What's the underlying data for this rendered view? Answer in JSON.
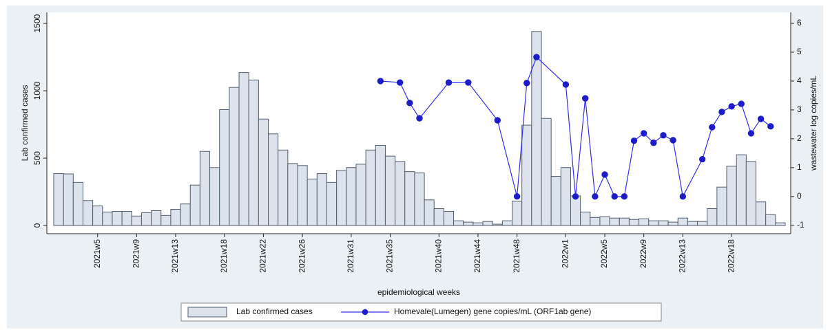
{
  "chart_data": {
    "type": "bar",
    "connect_missing": true,
    "x_label": "epidemiological weeks",
    "y_label": "Lab confirmed cases",
    "y2_label": "wastewater log copies/mL",
    "categories": [
      null,
      null,
      null,
      null,
      "2021w5",
      null,
      null,
      null,
      "2021w9",
      null,
      null,
      null,
      "2021w13",
      null,
      null,
      null,
      null,
      "2021w18",
      null,
      null,
      null,
      "2021w22",
      null,
      null,
      null,
      "2021w26",
      null,
      null,
      null,
      null,
      "2021w31",
      null,
      null,
      null,
      "2021w35",
      null,
      null,
      null,
      null,
      "2021w40",
      null,
      null,
      null,
      "2021w44",
      null,
      null,
      null,
      "2021w48",
      null,
      null,
      null,
      null,
      "2022w1",
      null,
      null,
      null,
      "2022w5",
      null,
      null,
      null,
      "2022w9",
      null,
      null,
      null,
      "2022w13",
      null,
      null,
      null,
      null,
      "2022w18",
      null,
      null,
      null,
      null,
      null
    ],
    "series": [
      {
        "name": "Lab confirmed cases",
        "type": "bar",
        "color": "#dde3ec",
        "edge": "#4f5d6c",
        "values": [
          385,
          383,
          320,
          185,
          145,
          100,
          105,
          105,
          70,
          95,
          110,
          75,
          120,
          160,
          300,
          550,
          430,
          860,
          1025,
          1135,
          1080,
          790,
          680,
          560,
          460,
          445,
          345,
          385,
          320,
          410,
          430,
          455,
          560,
          595,
          515,
          475,
          400,
          390,
          190,
          125,
          105,
          35,
          25,
          20,
          30,
          10,
          35,
          180,
          745,
          1440,
          795,
          365,
          430,
          220,
          100,
          60,
          65,
          55,
          55,
          45,
          50,
          35,
          35,
          25,
          55,
          30,
          30,
          125,
          285,
          440,
          525,
          475,
          175,
          80,
          20
        ]
      },
      {
        "name": "Homevale(Lumegen) gene copies/mL (ORF1ab gene)",
        "type": "line",
        "axis": "y2",
        "color": "#2e2ef0",
        "marker": "#1c1cc8",
        "values": [
          null,
          null,
          null,
          null,
          null,
          null,
          null,
          null,
          null,
          null,
          null,
          null,
          null,
          null,
          null,
          null,
          null,
          null,
          null,
          null,
          null,
          null,
          null,
          null,
          null,
          null,
          null,
          null,
          null,
          null,
          null,
          null,
          null,
          4.0,
          null,
          3.95,
          3.24,
          2.71,
          null,
          null,
          3.95,
          null,
          3.95,
          null,
          null,
          2.64,
          null,
          0,
          3.93,
          4.83,
          null,
          null,
          3.88,
          0,
          3.4,
          0,
          0.76,
          0,
          0,
          1.93,
          2.19,
          1.86,
          2.12,
          1.95,
          0,
          null,
          1.29,
          2.4,
          2.93,
          3.12,
          3.21,
          2.19,
          2.69,
          2.43,
          null
        ]
      }
    ],
    "ylim": [
      -61,
      1582
    ],
    "yticks": [
      0,
      500,
      1000,
      1500
    ],
    "y2lim": [
      -1.29,
      6.38
    ],
    "y2ticks": [
      -1,
      0,
      1,
      2,
      3,
      4,
      5,
      6
    ],
    "grid": false
  }
}
